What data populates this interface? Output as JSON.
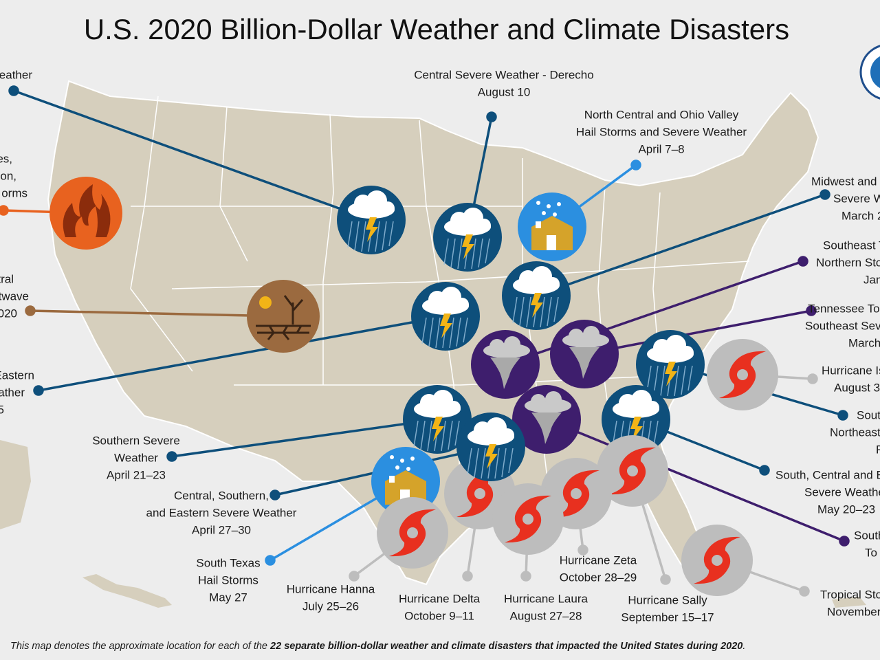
{
  "title": "U.S. 2020 Billion-Dollar Weather and Climate Disasters",
  "labels": [
    {
      "lines": [
        "eather"
      ]
    },
    {
      "lines": [
        "Central Severe Weather - Derecho",
        "August 10"
      ]
    },
    {
      "lines": [
        "North Central and Ohio Valley",
        "Hail Storms and Severe Weather",
        "April 7–8"
      ]
    },
    {
      "lines": [
        "es,",
        "on,",
        "orms"
      ]
    },
    {
      "lines": [
        "Midwest and",
        "Severe W",
        "March 2"
      ]
    },
    {
      "lines": [
        "tral",
        "twave",
        "020"
      ]
    },
    {
      "lines": [
        "Southeast T",
        "Northern Sto",
        "Jan"
      ]
    },
    {
      "lines": [
        "Tennessee To",
        "Southeast Sev",
        "March"
      ]
    },
    {
      "lines": [
        "Eastern",
        "ather",
        "5"
      ]
    },
    {
      "lines": [
        "Hurricane Is",
        "August 3"
      ]
    },
    {
      "lines": [
        "Sout",
        "Northeast",
        "F"
      ]
    },
    {
      "lines": [
        "Southern Severe",
        "Weather",
        "April 21–23"
      ]
    },
    {
      "lines": [
        "South, Central and E",
        "Severe Weathe",
        "May 20–23"
      ]
    },
    {
      "lines": [
        "Central, Southern,",
        "and Eastern Severe Weather",
        "April 27–30"
      ]
    },
    {
      "lines": [
        "South",
        "To"
      ]
    },
    {
      "lines": [
        "South Texas",
        "Hail Storms",
        "May 27"
      ]
    },
    {
      "lines": [
        "Hurricane Zeta",
        "October 28–29"
      ]
    },
    {
      "lines": [
        "Hurricane Hanna",
        "July 25–26"
      ]
    },
    {
      "lines": [
        "Hurricane Delta",
        "October 9–11"
      ]
    },
    {
      "lines": [
        "Hurricane Laura",
        "August 27–28"
      ]
    },
    {
      "lines": [
        "Hurricane Sally",
        "September 15–17"
      ]
    },
    {
      "lines": [
        "Tropical Sto",
        "November"
      ]
    }
  ],
  "footer": {
    "before": "This map denotes the approximate location for each of the ",
    "bold": "22 separate billion-dollar weather and climate disasters that impacted the United States during 2020",
    "after": "."
  }
}
